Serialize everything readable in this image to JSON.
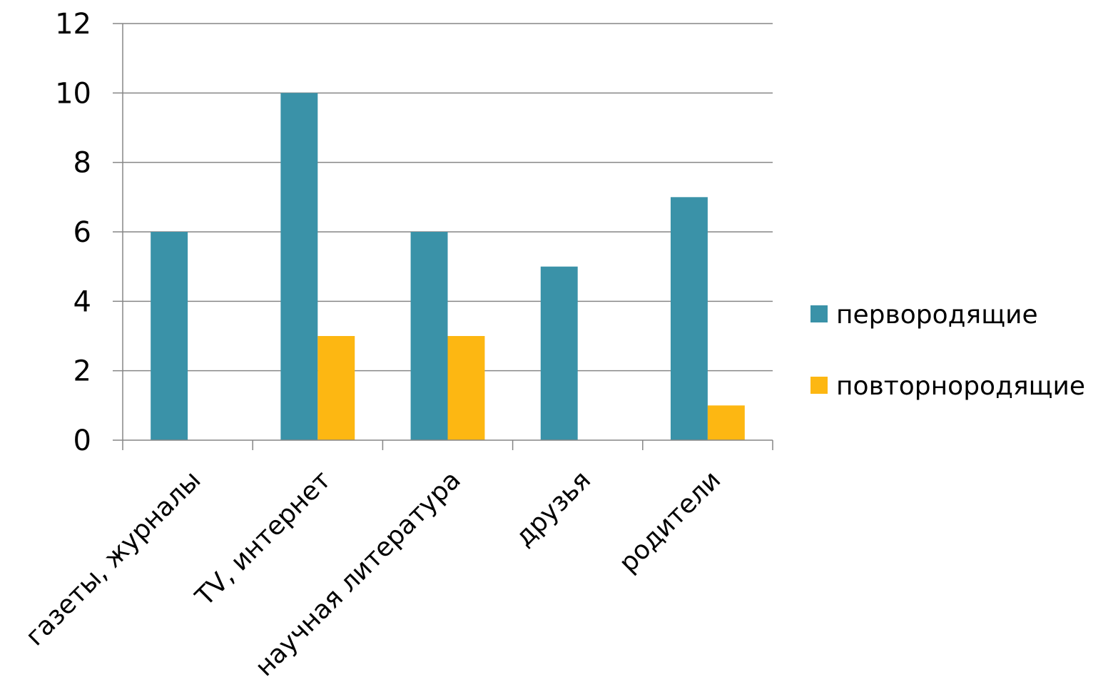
{
  "chart_data": {
    "type": "bar",
    "title": "",
    "xlabel": "",
    "ylabel": "",
    "categories": [
      "газеты, журналы",
      "TV, интернет",
      "научная литература",
      "друзья",
      "родители"
    ],
    "series": [
      {
        "name": "первородящие",
        "color": "#3A92A8",
        "values": [
          6,
          10,
          6,
          5,
          7
        ]
      },
      {
        "name": "повторнородящие",
        "color": "#FDB712",
        "values": [
          0,
          3,
          3,
          0,
          1
        ]
      }
    ],
    "yticks": [
      "0",
      "2",
      "4",
      "6",
      "8",
      "10",
      "12"
    ],
    "ylim": [
      0,
      12
    ],
    "grid": true,
    "legend_position": "right"
  }
}
